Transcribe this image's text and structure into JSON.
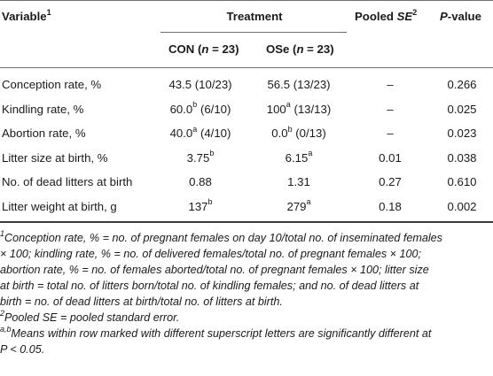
{
  "headers": {
    "variable": "Variable",
    "variable_sup": "1",
    "treatment": "Treatment",
    "con": "CON (",
    "con_n": "n",
    "con_val": " = 23)",
    "ose": "OSe (",
    "ose_n": "n",
    "ose_val": " = 23)",
    "pooled": "Pooled ",
    "pooled_se": "SE",
    "pooled_sup": "2",
    "pvalue_p": "P",
    "pvalue_rest": "-value"
  },
  "rows": [
    {
      "variable": "Conception rate, %",
      "con": "43.5 (10/23)",
      "con_sup": "",
      "con_rest": "",
      "ose": "56.5 (13/23)",
      "ose_sup": "",
      "ose_rest": "",
      "pooled": "–",
      "p": "0.266"
    },
    {
      "variable": "Kindling rate, %",
      "con": "60.0",
      "con_sup": "b",
      "con_rest": " (6/10)",
      "ose": "100",
      "ose_sup": "a",
      "ose_rest": " (13/13)",
      "pooled": "–",
      "p": "0.025"
    },
    {
      "variable": "Abortion rate, %",
      "con": "40.0",
      "con_sup": "a",
      "con_rest": " (4/10)",
      "ose": "0.0",
      "ose_sup": "b",
      "ose_rest": " (0/13)",
      "pooled": "–",
      "p": "0.023"
    },
    {
      "variable": "Litter size at birth, %",
      "con": "3.75",
      "con_sup": "b",
      "con_rest": "",
      "ose": "6.15",
      "ose_sup": "a",
      "ose_rest": "",
      "pooled": "0.01",
      "p": "0.038"
    },
    {
      "variable": "No. of dead litters at birth",
      "con": "0.88",
      "con_sup": "",
      "con_rest": "",
      "ose": "1.31",
      "ose_sup": "",
      "ose_rest": "",
      "pooled": "0.27",
      "p": "0.610"
    },
    {
      "variable": "Litter weight at birth, g",
      "con": "137",
      "con_sup": "b",
      "con_rest": "",
      "ose": "279",
      "ose_sup": "a",
      "ose_rest": "",
      "pooled": "0.18",
      "p": "0.002"
    }
  ],
  "footnotes": {
    "n1_sup": "1",
    "n1_lines": [
      "Conception rate, % = no. of pregnant females on day 10/total no. of inseminated females",
      "× 100; kindling rate, % = no. of delivered females/total no. of pregnant females × 100;",
      "abortion rate, % = no. of females aborted/total no. of pregnant females × 100; litter size",
      "at birth = total no. of litters born/total no. of kindling females; and no. of dead litters at",
      "birth = no. of dead litters at birth/total no. of litters at birth."
    ],
    "n2_sup": "2",
    "n2_text": "Pooled SE = pooled standard error.",
    "n3_sup": "a,b",
    "n3_lines": [
      "Means within row marked with different superscript letters are significantly different at",
      "P < 0.05."
    ]
  }
}
